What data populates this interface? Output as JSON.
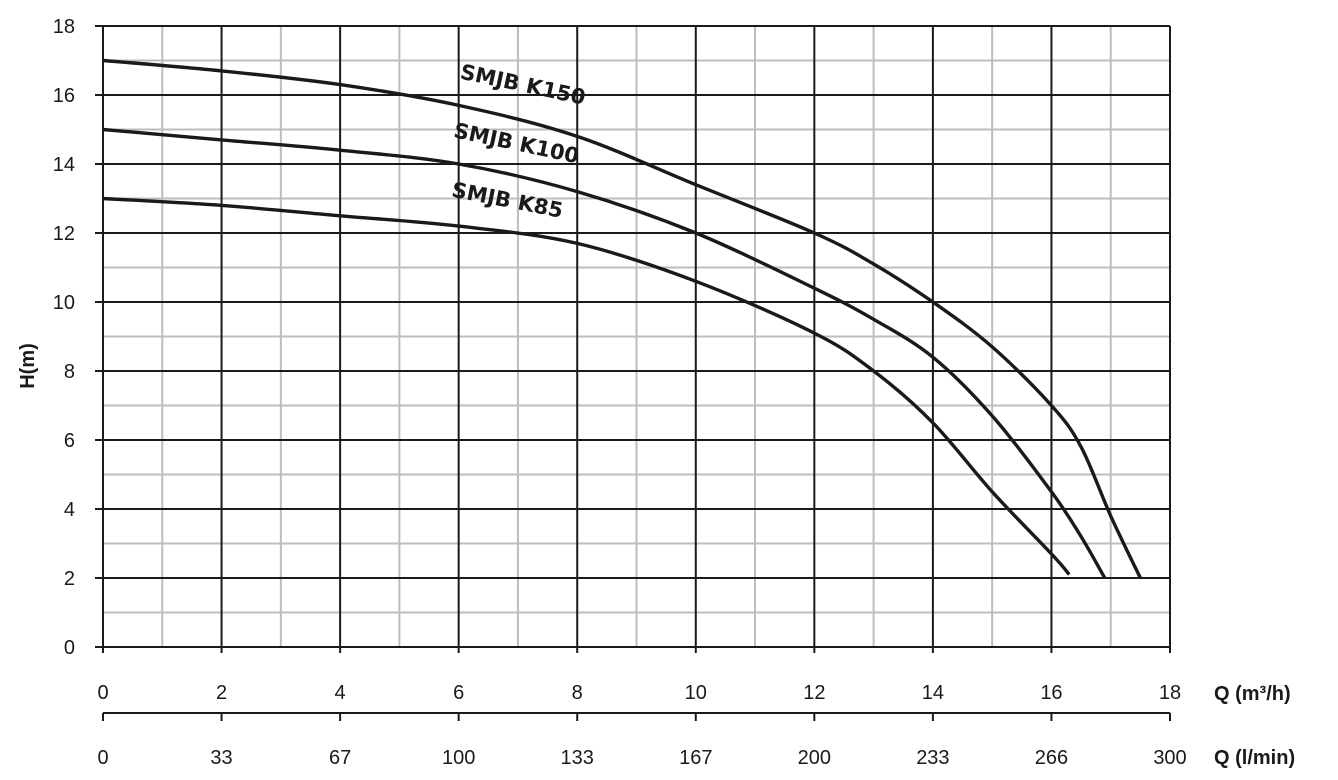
{
  "chart_data": {
    "type": "line",
    "ylabel": "H(m)",
    "xlabel": "Q (m³/h)",
    "x2label": "Q (l/min)",
    "xlim": [
      0,
      18
    ],
    "ylim": [
      0,
      18
    ],
    "x_ticks": [
      "0",
      "2",
      "4",
      "6",
      "8",
      "10",
      "12",
      "14",
      "16",
      "18"
    ],
    "y_ticks": [
      "0",
      "2",
      "4",
      "6",
      "8",
      "10",
      "12",
      "14",
      "16",
      "18"
    ],
    "x2_ticks": [
      "0",
      "33",
      "67",
      "100",
      "133",
      "167",
      "200",
      "233",
      "266",
      "300"
    ],
    "grid": {
      "major": true,
      "minor": true
    },
    "series": [
      {
        "name": "SMJB K150",
        "points": [
          [
            0,
            17
          ],
          [
            2,
            16.7
          ],
          [
            4,
            16.3
          ],
          [
            6,
            15.7
          ],
          [
            8,
            14.8
          ],
          [
            10,
            13.4
          ],
          [
            12,
            12.0
          ],
          [
            13,
            11.1
          ],
          [
            14,
            10.0
          ],
          [
            15,
            8.7
          ],
          [
            16,
            7.0
          ],
          [
            16.5,
            5.8
          ],
          [
            17,
            3.8
          ],
          [
            17.5,
            2.0
          ]
        ]
      },
      {
        "name": "SMJB K100",
        "points": [
          [
            0,
            15
          ],
          [
            2,
            14.7
          ],
          [
            4,
            14.4
          ],
          [
            6,
            14.0
          ],
          [
            8,
            13.2
          ],
          [
            10,
            12.0
          ],
          [
            12,
            10.4
          ],
          [
            13,
            9.5
          ],
          [
            14,
            8.4
          ],
          [
            15,
            6.7
          ],
          [
            16,
            4.5
          ],
          [
            16.5,
            3.2
          ],
          [
            16.9,
            2.0
          ]
        ]
      },
      {
        "name": "SMJB K85",
        "points": [
          [
            0,
            13
          ],
          [
            2,
            12.8
          ],
          [
            4,
            12.5
          ],
          [
            6,
            12.2
          ],
          [
            8,
            11.7
          ],
          [
            10,
            10.6
          ],
          [
            12,
            9.1
          ],
          [
            13,
            8.0
          ],
          [
            14,
            6.5
          ],
          [
            15,
            4.5
          ],
          [
            16,
            2.7
          ],
          [
            16.3,
            2.1
          ]
        ]
      }
    ]
  }
}
